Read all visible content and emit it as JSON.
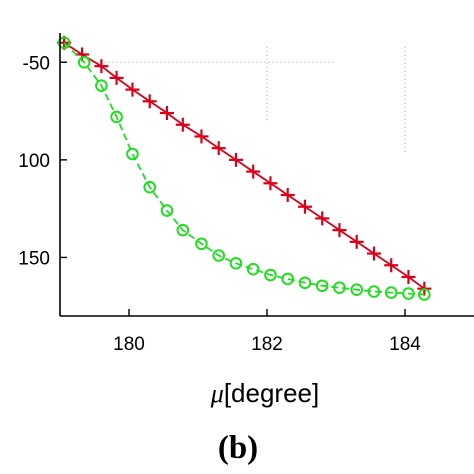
{
  "chart_data": {
    "type": "line",
    "xlabel_symbol": "μ",
    "xlabel_unit": "[degree]",
    "panel_label": "(b)",
    "xlim": [
      179,
      185
    ],
    "ylim": [
      -35,
      -180
    ],
    "x_ticks": [
      180,
      182,
      184
    ],
    "y_ticks": [
      -50,
      100,
      150
    ],
    "y_tick_labels": [
      "-50",
      "100",
      "150"
    ],
    "grid": false,
    "series": [
      {
        "marker": "plus",
        "color": "#d9001b",
        "x": [
          179.06,
          179.32,
          179.6,
          179.82,
          180.05,
          180.3,
          180.55,
          180.78,
          181.05,
          181.3,
          181.55,
          181.8,
          182.05,
          182.3,
          182.55,
          182.8,
          183.05,
          183.3,
          183.55,
          183.8,
          184.05,
          184.28
        ],
        "y": [
          -40,
          -46,
          -52,
          -58,
          -64,
          -70,
          -76,
          -82,
          -88,
          -94,
          -100,
          -106,
          -112,
          -118,
          -124,
          -130,
          -136,
          -142,
          -148,
          -154,
          -160,
          -166
        ]
      },
      {
        "marker": "circle",
        "color": "#22dd22",
        "x": [
          179.06,
          179.35,
          179.6,
          179.82,
          180.05,
          180.3,
          180.55,
          180.78,
          181.05,
          181.3,
          181.55,
          181.8,
          182.05,
          182.3,
          182.55,
          182.8,
          183.05,
          183.3,
          183.55,
          183.8,
          184.05,
          184.28
        ],
        "y": [
          -40,
          -50,
          -62,
          -78,
          -97,
          -114,
          -126,
          -136,
          -143,
          -149,
          -153,
          -156,
          -159,
          -161,
          -163,
          -164.5,
          -165.5,
          -166.5,
          -167.5,
          -168,
          -168.5,
          -169
        ]
      }
    ]
  },
  "colors": {
    "axis": "#000000",
    "guide": "#bbbbbb"
  }
}
